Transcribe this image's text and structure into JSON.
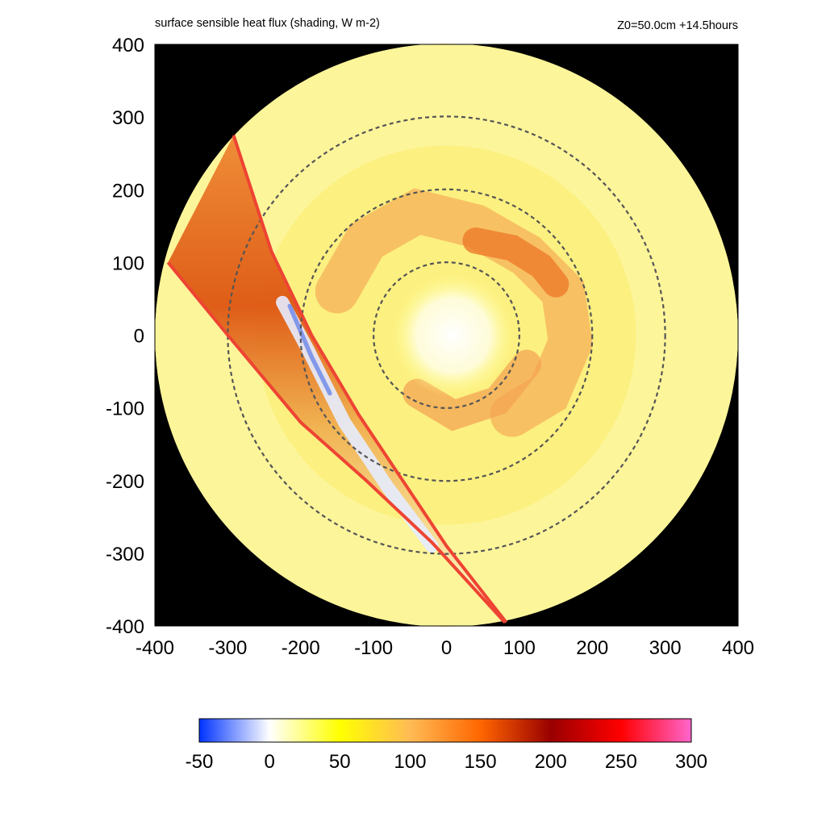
{
  "chart_data": {
    "type": "heatmap",
    "title": "surface sensible heat flux (shading, W m-2)",
    "subtitle": "Z0=50.0cm  +14.5hours",
    "xlabel": "",
    "ylabel": "",
    "xlim": [
      -400,
      400
    ],
    "ylim": [
      -400,
      400
    ],
    "xticks": [
      "-400",
      "-300",
      "-200",
      "-100",
      "0",
      "100",
      "200",
      "300",
      "400"
    ],
    "yticks": [
      "400",
      "300",
      "200",
      "100",
      "0",
      "-100",
      "-200",
      "-300",
      "-400"
    ],
    "domain_radius": 400,
    "background_color": "#000000",
    "range_rings": [
      {
        "radius": 100,
        "color": "#555555"
      },
      {
        "radius": 200,
        "color": "#555555"
      },
      {
        "radius": 300,
        "color": "#555555"
      }
    ],
    "sector": {
      "inner_edge": [
        [
          -292,
          275
        ],
        [
          -240,
          115
        ],
        [
          -185,
          0
        ],
        [
          -120,
          -110
        ],
        [
          -60,
          -200
        ],
        [
          0,
          -290
        ],
        [
          82,
          -395
        ]
      ],
      "outer_edge": [
        [
          -382,
          100
        ],
        [
          -300,
          0
        ],
        [
          -200,
          -120
        ],
        [
          -110,
          -200
        ],
        [
          -20,
          -285
        ],
        [
          80,
          -395
        ]
      ],
      "line_color": "#ee4433"
    },
    "colorbar": {
      "min": -50,
      "max": 300,
      "ticks": [
        "-50",
        "0",
        "50",
        "100",
        "150",
        "200",
        "250",
        "300"
      ],
      "stops": [
        {
          "value": -50,
          "color": "#0033ff"
        },
        {
          "value": 0,
          "color": "#ffffff"
        },
        {
          "value": 50,
          "color": "#ffff00"
        },
        {
          "value": 100,
          "color": "#ffbb55"
        },
        {
          "value": 150,
          "color": "#ff6600"
        },
        {
          "value": 200,
          "color": "#990000"
        },
        {
          "value": 250,
          "color": "#ff0000"
        },
        {
          "value": 300,
          "color": "#ff66cc"
        }
      ]
    }
  }
}
